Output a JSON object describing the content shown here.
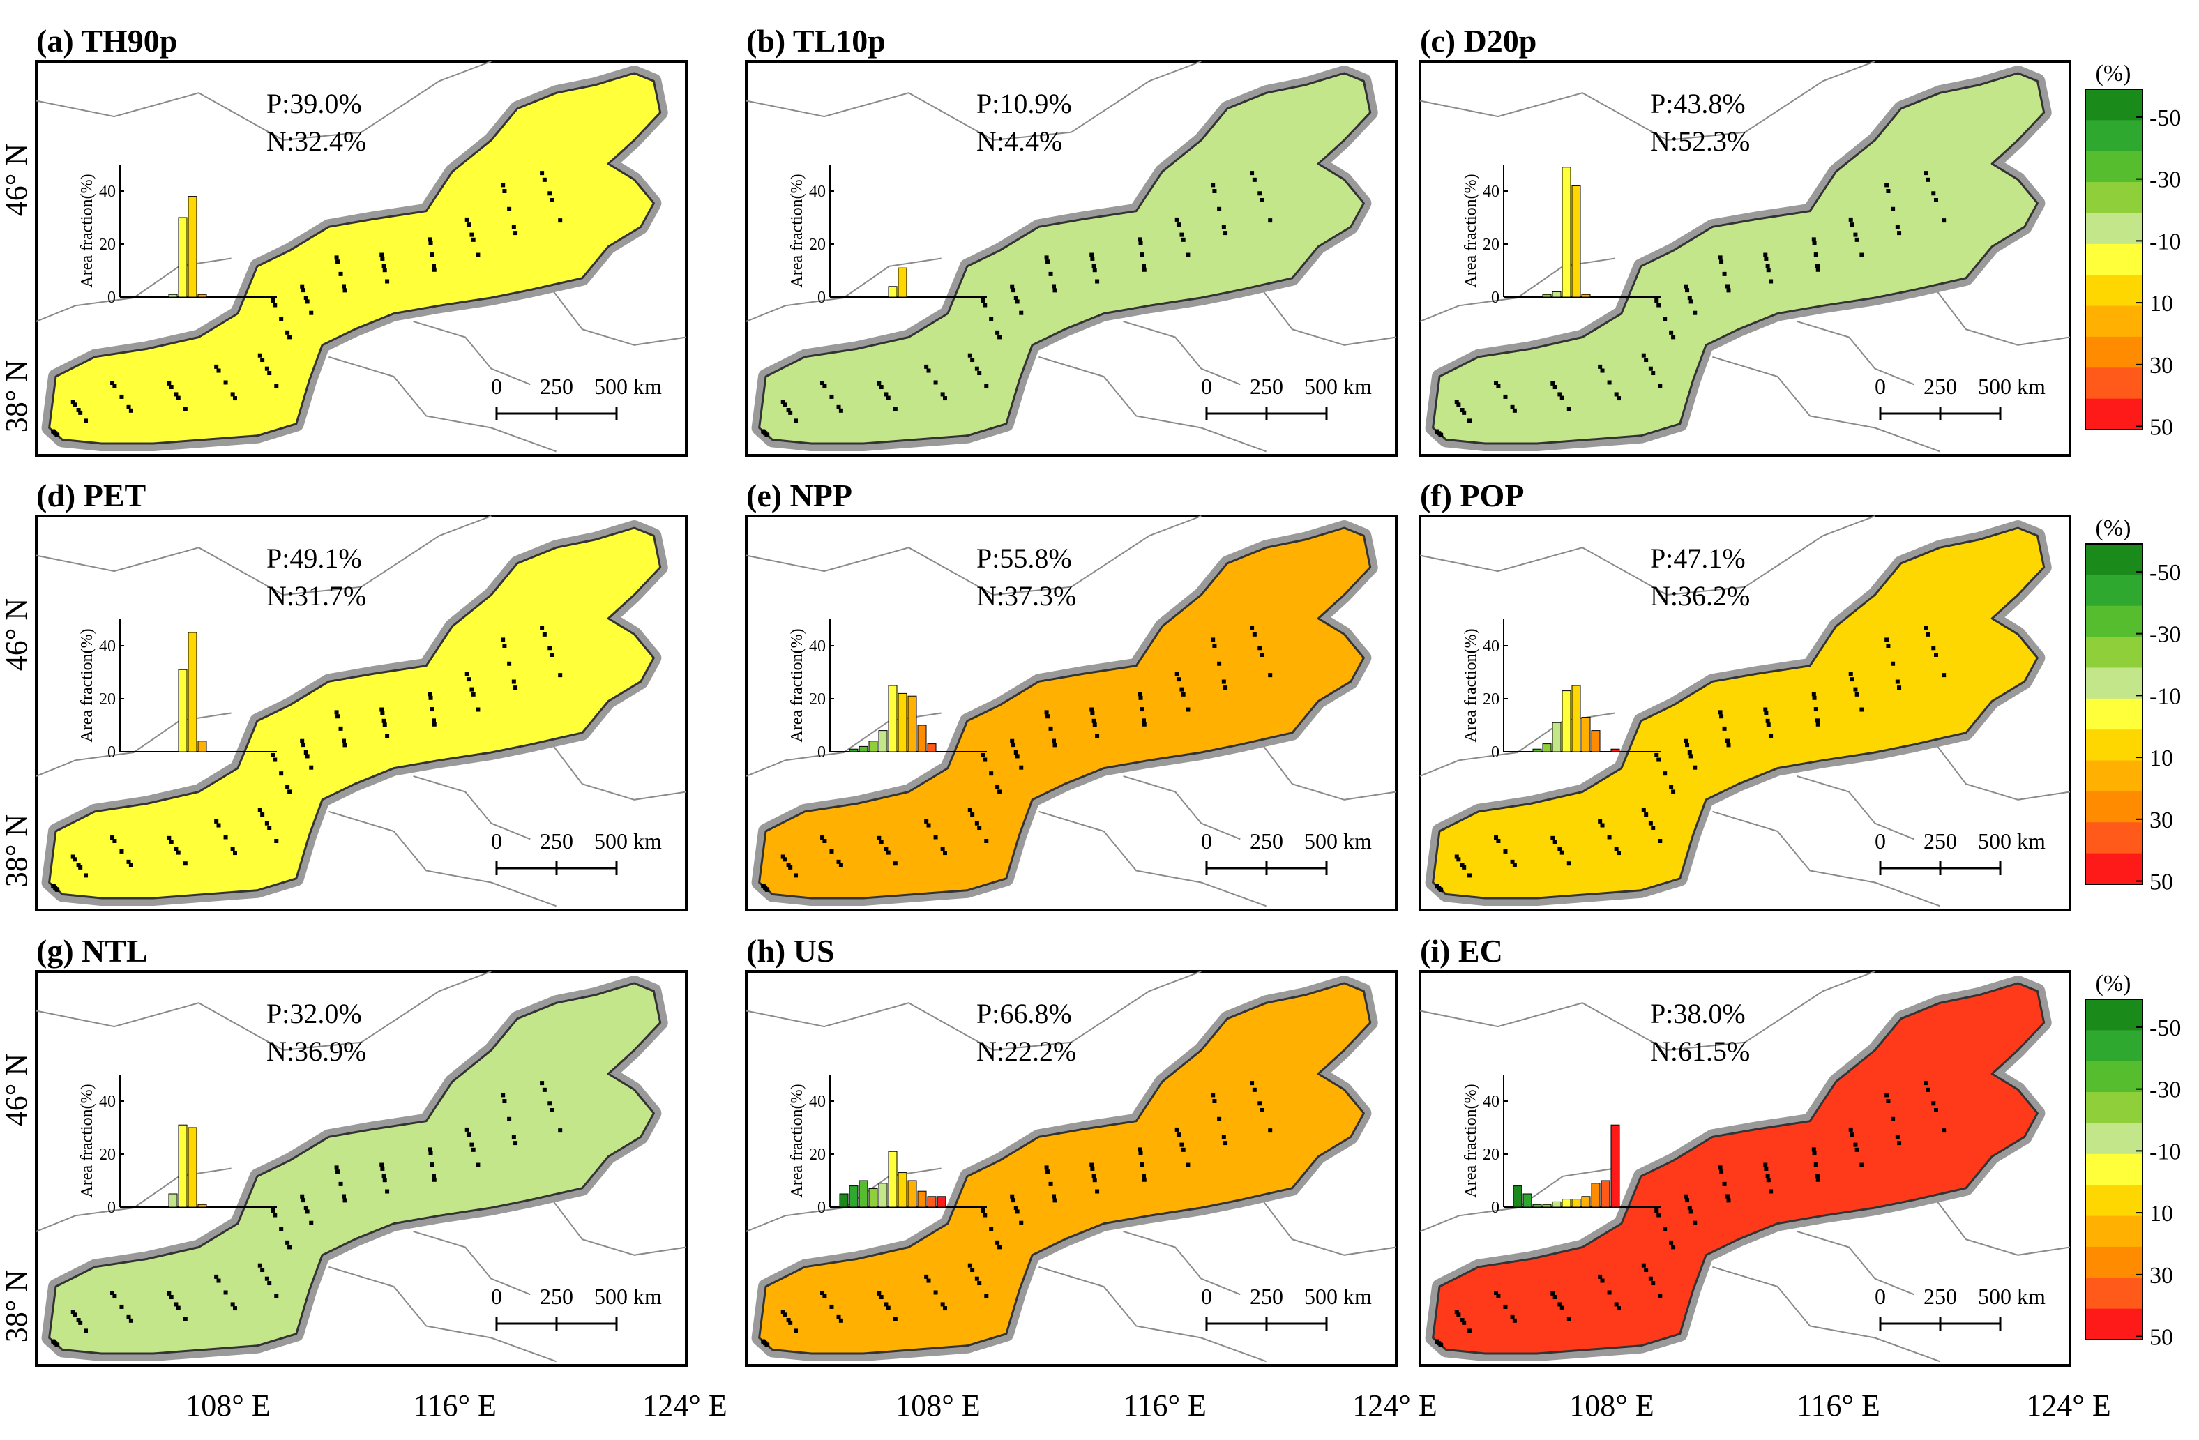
{
  "chart_data": {
    "type": "map",
    "x_ticks": [
      "108° E",
      "116° E",
      "124° E"
    ],
    "y_ticks": [
      "46° N",
      "38° N"
    ],
    "colorbar": {
      "unit": "(%)",
      "tick_labels": [
        "-50",
        "-30",
        "-10",
        "10",
        "30",
        "50"
      ],
      "colors": [
        "#1a8a1a",
        "#2fa82f",
        "#56bd2e",
        "#8fd03a",
        "#c4e68a",
        "#ffff3a",
        "#ffd700",
        "#ffb000",
        "#ff8c00",
        "#ff5a1a",
        "#ff1a1a"
      ]
    },
    "inset_axis": {
      "ylabel": "Area fraction(%)",
      "yticks": [
        "0",
        "20",
        "40"
      ],
      "ymax": 50
    },
    "scale_bar": {
      "labels": [
        "0",
        "250",
        "500 km"
      ]
    },
    "panels": [
      {
        "id": "a",
        "title": "(a) TH90p",
        "p_label": "P:39.0%",
        "n_label": "N:32.4%",
        "dominant": "#ffff3a",
        "hist": [
          0,
          0,
          0,
          0,
          1,
          30,
          38,
          1,
          0,
          0,
          0
        ]
      },
      {
        "id": "b",
        "title": "(b) TL10p",
        "p_label": "P:10.9%",
        "n_label": "N:4.4%",
        "dominant": "#c4e68a",
        "hist": [
          0,
          0,
          0,
          0,
          0,
          4,
          11,
          0,
          0,
          0,
          0
        ]
      },
      {
        "id": "c",
        "title": "(c) D20p",
        "p_label": "P:43.8%",
        "n_label": "N:52.3%",
        "dominant": "#c4e68a",
        "hist": [
          0,
          0,
          0,
          1,
          2,
          49,
          42,
          1,
          0,
          0,
          0
        ]
      },
      {
        "id": "d",
        "title": "(d) PET",
        "p_label": "P:49.1%",
        "n_label": "N:31.7%",
        "dominant": "#ffff3a",
        "hist": [
          0,
          0,
          0,
          0,
          0,
          31,
          45,
          4,
          0,
          0,
          0
        ]
      },
      {
        "id": "e",
        "title": "(e) NPP",
        "p_label": "P:55.8%",
        "n_label": "N:37.3%",
        "dominant": "#ffb000",
        "hist": [
          0,
          1,
          2,
          4,
          8,
          25,
          22,
          21,
          10,
          3,
          0
        ]
      },
      {
        "id": "f",
        "title": "(f) POP",
        "p_label": "P:47.1%",
        "n_label": "N:36.2%",
        "dominant": "#ffd700",
        "hist": [
          0,
          0,
          1,
          3,
          11,
          23,
          25,
          13,
          8,
          0,
          1
        ]
      },
      {
        "id": "g",
        "title": "(g) NTL",
        "p_label": "P:32.0%",
        "n_label": "N:36.9%",
        "dominant": "#c4e68a",
        "hist": [
          0,
          0,
          0,
          0,
          5,
          31,
          30,
          1,
          0,
          0,
          0
        ]
      },
      {
        "id": "h",
        "title": "(h) US",
        "p_label": "P:66.8%",
        "n_label": "N:22.2%",
        "dominant": "#ffb000",
        "hist": [
          5,
          8,
          10,
          7,
          9,
          21,
          13,
          10,
          6,
          4,
          4
        ]
      },
      {
        "id": "i",
        "title": "(i) EC",
        "p_label": "P:38.0%",
        "n_label": "N:61.5%",
        "dominant": "#ff3a1a",
        "hist": [
          8,
          5,
          1,
          1,
          2,
          3,
          3,
          4,
          9,
          10,
          31
        ]
      }
    ]
  }
}
